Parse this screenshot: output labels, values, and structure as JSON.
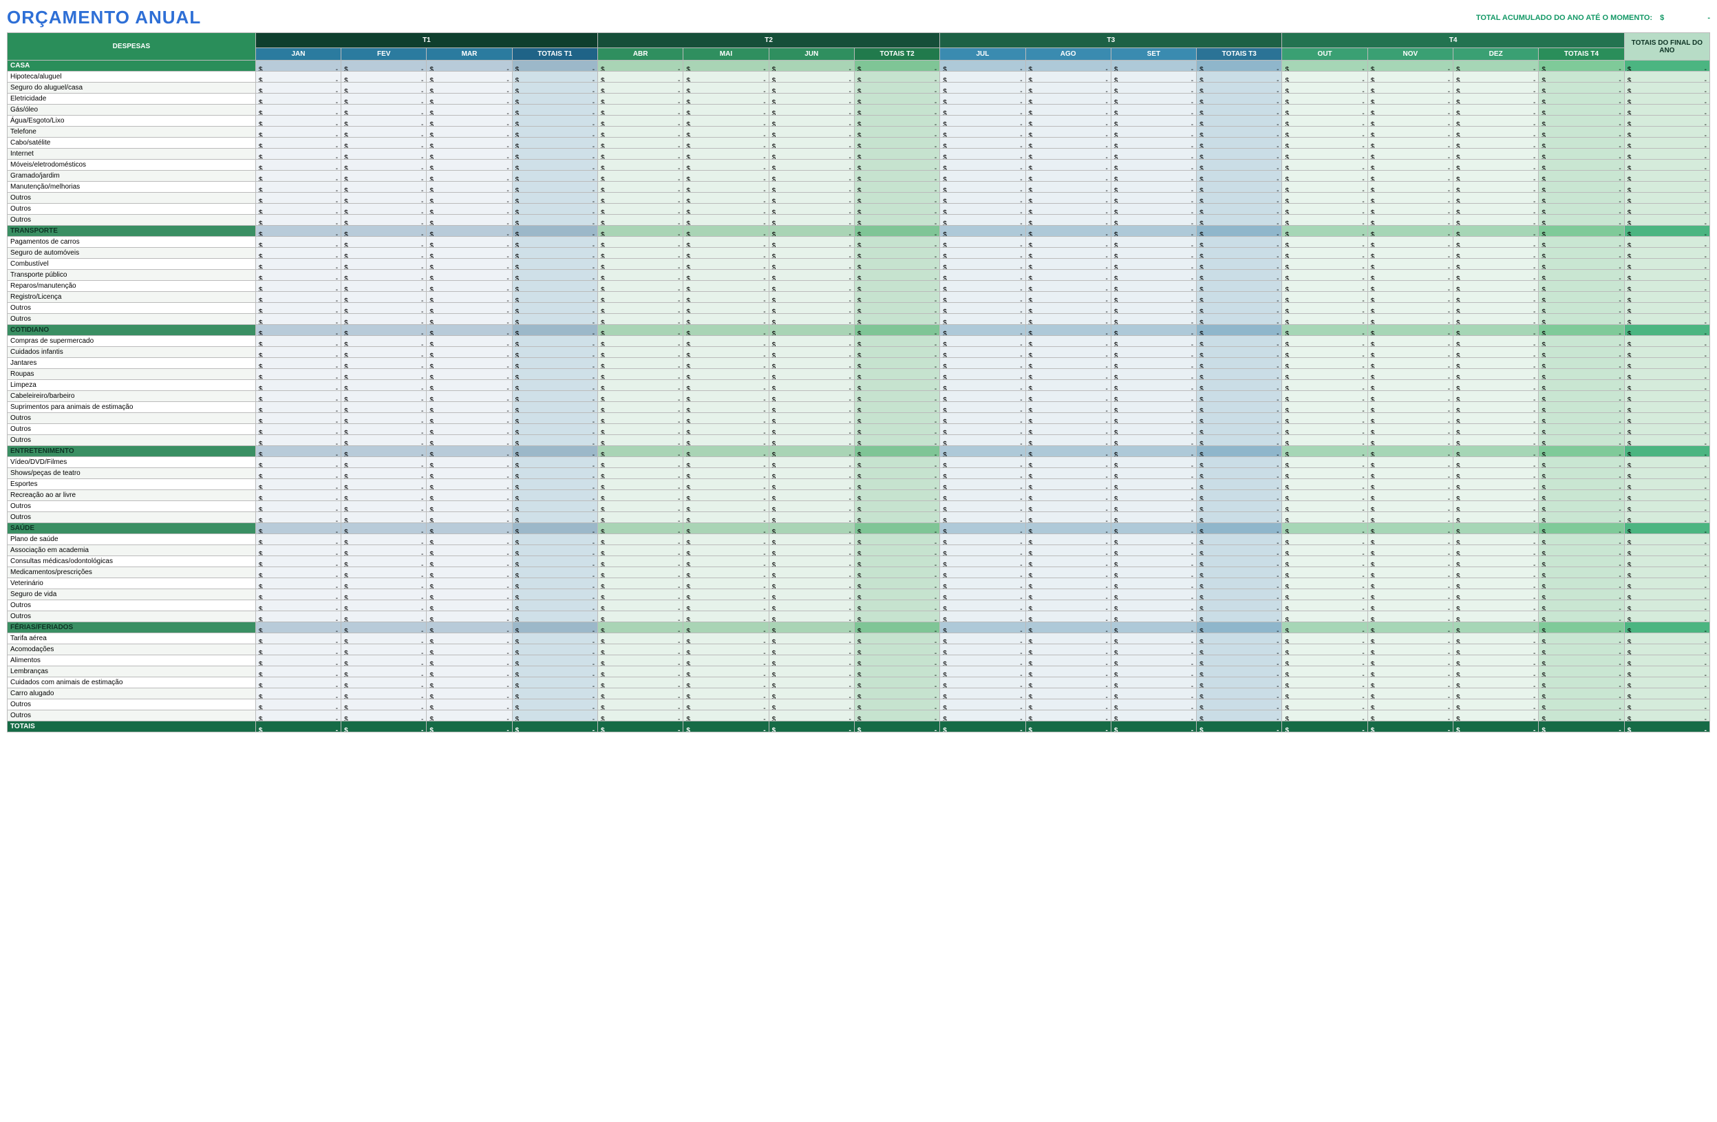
{
  "title": "ORÇAMENTO ANUAL",
  "title_color": "#2e6fd6",
  "ytd_label": "TOTAL ACUMULADO DO ANO ATÉ O MOMENTO:",
  "ytd_color": "#139866",
  "currency_symbol": "$",
  "dash": "-",
  "headers": {
    "despesas": "DESPESAS",
    "year_total": "TOTAIS DO FINAL DO ANO",
    "totals_row": "TOTAIS",
    "despesas_bg": "#2a8e5a",
    "year_total_bg": "#b7dcc6"
  },
  "quarters": [
    {
      "label": "T1",
      "top_bg": "#0f3f2e",
      "months": [
        {
          "label": "JAN",
          "bg": "#2b7b9f"
        },
        {
          "label": "FEV",
          "bg": "#2b7b9f"
        },
        {
          "label": "MAR",
          "bg": "#2b7b9f"
        }
      ],
      "total_label": "TOTAIS T1",
      "total_bg": "#1f6387",
      "col_month_bg": "#eef2f6",
      "col_total_bg": "#cfe0e8",
      "cat_month_bg": "#b8cbd9",
      "cat_total_bg": "#9cb8c9"
    },
    {
      "label": "T2",
      "top_bg": "#164f39",
      "months": [
        {
          "label": "ABR",
          "bg": "#2f8f5f"
        },
        {
          "label": "MAI",
          "bg": "#2f8f5f"
        },
        {
          "label": "JUN",
          "bg": "#2f8f5f"
        }
      ],
      "total_label": "TOTAIS T2",
      "total_bg": "#217a4c",
      "col_month_bg": "#e6f2ea",
      "col_total_bg": "#c6e3cf",
      "cat_month_bg": "#a9d4b5",
      "cat_total_bg": "#7fc596"
    },
    {
      "label": "T3",
      "top_bg": "#1d6145",
      "months": [
        {
          "label": "JUL",
          "bg": "#3a8bb0"
        },
        {
          "label": "AGO",
          "bg": "#3a8bb0"
        },
        {
          "label": "SET",
          "bg": "#3a8bb0"
        }
      ],
      "total_label": "TOTAIS T3",
      "total_bg": "#2b7396",
      "col_month_bg": "#e9f0f4",
      "col_total_bg": "#cadde6",
      "cat_month_bg": "#aec9d8",
      "cat_total_bg": "#8fb6cb"
    },
    {
      "label": "T4",
      "top_bg": "#237350",
      "months": [
        {
          "label": "OUT",
          "bg": "#3aa073"
        },
        {
          "label": "NOV",
          "bg": "#3aa073"
        },
        {
          "label": "DEZ",
          "bg": "#3aa073"
        }
      ],
      "total_label": "TOTAIS T4",
      "total_bg": "#2a8e5a",
      "col_month_bg": "#e8f4ec",
      "col_total_bg": "#c9e6d2",
      "cat_month_bg": "#a6d6b6",
      "cat_total_bg": "#7fca99"
    }
  ],
  "year_total_col": {
    "bg": "#d5ebdb",
    "cat_bg": "#4bb581"
  },
  "categories": [
    {
      "name": "CASA",
      "cat_bg": "#2a8e5a",
      "cat_text": "#ffffff",
      "items": [
        "Hipoteca/aluguel",
        "Seguro do aluguel/casa",
        "Eletricidade",
        "Gás/óleo",
        "Água/Esgoto/Lixo",
        "Telefone",
        "Cabo/satélite",
        "Internet",
        "Móveis/eletrodomésticos",
        "Gramado/jardim",
        "Manutenção/melhorias",
        "Outros",
        "Outros",
        "Outros"
      ]
    },
    {
      "name": "TRANSPORTE",
      "cat_bg": "#3a8f63",
      "cat_text": "#0d3324",
      "items": [
        "Pagamentos de carros",
        "Seguro de automóveis",
        "Combustível",
        "Transporte público",
        "Reparos/manutenção",
        "Registro/Licença",
        "Outros",
        "Outros"
      ]
    },
    {
      "name": "COTIDIANO",
      "cat_bg": "#3a8f63",
      "cat_text": "#0d3324",
      "items": [
        "Compras de supermercado",
        "Cuidados infantis",
        "Jantares",
        "Roupas",
        "Limpeza",
        "Cabeleireiro/barbeiro",
        "Suprimentos para animais de estimação",
        "Outros",
        "Outros",
        "Outros"
      ]
    },
    {
      "name": "ENTRETENIMENTO",
      "cat_bg": "#3a8f63",
      "cat_text": "#0d3324",
      "items": [
        "Vídeo/DVD/Filmes",
        "Shows/peças de teatro",
        "Esportes",
        "Recreação ao ar livre",
        "Outros",
        "Outros"
      ]
    },
    {
      "name": "SAÚDE",
      "cat_bg": "#3a8f63",
      "cat_text": "#0d3324",
      "items": [
        "Plano de saúde",
        "Associação em academia",
        "Consultas médicas/odontológicas",
        "Medicamentos/prescrições",
        "Veterinário",
        "Seguro de vida",
        "Outros",
        "Outros"
      ]
    },
    {
      "name": "FÉRIAS/FERIADOS",
      "cat_bg": "#3a8f63",
      "cat_text": "#0d3324",
      "items": [
        "Tarifa aérea",
        "Acomodações",
        "Alimentos",
        "Lembranças",
        "Cuidados com animais de estimação",
        "Carro alugado",
        "Outros",
        "Outros"
      ]
    }
  ],
  "row_stripe": [
    "#ffffff",
    "#f3f6f3"
  ],
  "totals_row_bg": "#166b46"
}
